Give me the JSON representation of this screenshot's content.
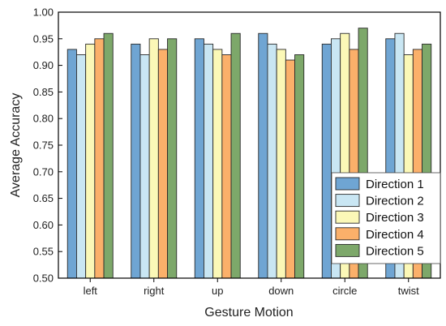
{
  "chart_data": {
    "type": "bar",
    "xlabel": "Gesture Motion",
    "ylabel": "Average Accuracy",
    "categories": [
      "left",
      "right",
      "up",
      "down",
      "circle",
      "twist"
    ],
    "ylim": [
      0.5,
      1.0
    ],
    "yticks": [
      "0.50",
      "0.55",
      "0.60",
      "0.65",
      "0.70",
      "0.75",
      "0.80",
      "0.85",
      "0.90",
      "0.95",
      "1.00"
    ],
    "grid": false,
    "legend_position": "bottom-right",
    "series": [
      {
        "name": "Direction 1",
        "color": "#6fa5d3",
        "values": [
          0.93,
          0.94,
          0.95,
          0.96,
          0.94,
          0.95
        ]
      },
      {
        "name": "Direction 2",
        "color": "#c9e6f3",
        "values": [
          0.92,
          0.92,
          0.94,
          0.94,
          0.95,
          0.96
        ]
      },
      {
        "name": "Direction 3",
        "color": "#fbf8b7",
        "values": [
          0.94,
          0.95,
          0.93,
          0.93,
          0.96,
          0.92
        ]
      },
      {
        "name": "Direction 4",
        "color": "#fbb06a",
        "values": [
          0.95,
          0.93,
          0.92,
          0.91,
          0.93,
          0.93
        ]
      },
      {
        "name": "Direction 5",
        "color": "#7da86a",
        "values": [
          0.96,
          0.95,
          0.96,
          0.92,
          0.97,
          0.94
        ]
      }
    ]
  }
}
